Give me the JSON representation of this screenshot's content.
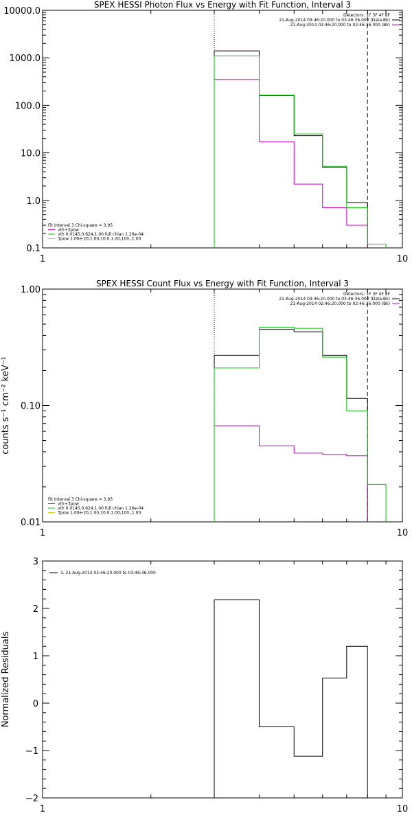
{
  "chart_data": [
    {
      "type": "line",
      "step": true,
      "title": "SPEX HESSI Photon Flux vs Energy with Fit Function, Interval 3",
      "xlabel": "",
      "ylabel": "",
      "xscale": "log",
      "yscale": "log",
      "xlim": [
        1,
        10
      ],
      "ylim": [
        0.1,
        10000
      ],
      "xticks": [
        "1",
        "10"
      ],
      "yticks": [
        "10000.0",
        "1000.0",
        "100.0",
        "10.0",
        "1.0",
        "0.1"
      ],
      "vlines": [
        {
          "x": 3.0,
          "style": "dotted"
        },
        {
          "x": 8.0,
          "style": "dashed"
        }
      ],
      "bin_edges": [
        3,
        4,
        5,
        6,
        7,
        8,
        9
      ],
      "series": [
        {
          "label": "21-Aug-2014 03:46:20.000 to 03:46:36.000 (Data-Bk)",
          "color": "#000000",
          "values": [
            1400,
            160,
            23,
            5.0,
            0.9
          ]
        },
        {
          "label": "21-Aug-2014 02:46:20.000 to 02:46:36.000 (Bk)",
          "color": "#cc00cc",
          "values": [
            350,
            17,
            2.2,
            0.7,
            0.3
          ]
        },
        {
          "label": "",
          "color": "#00cc00",
          "values": [
            1100,
            165,
            25,
            5.2,
            0.7,
            0.12
          ]
        }
      ],
      "annotations": {
        "detectors": "Detectors: 1F 3F 4F 8F",
        "fit_header": "Fit Interval 3   Chi-square = 3.95",
        "fit_lines": [
          {
            "text": "vth+3pow",
            "color": "#cc00cc"
          },
          {
            "text": "vth 0.0145,0.624,1.00   full chian 1.26e-04",
            "color": "#00cc00"
          },
          {
            "text": "3pow 1.00e-20,1.00,10.0,1.00,100.,1.00",
            "color": "#cccc00"
          }
        ]
      }
    },
    {
      "type": "line",
      "step": true,
      "title": "SPEX HESSI Count Flux vs Energy with Fit Function, Interval 3",
      "xlabel": "",
      "ylabel": "counts s⁻¹ cm⁻² keV⁻¹",
      "xscale": "log",
      "yscale": "log",
      "xlim": [
        1,
        10
      ],
      "ylim": [
        0.01,
        1.0
      ],
      "xticks": [
        "1",
        "10"
      ],
      "yticks": [
        "1.00",
        "0.10",
        "0.01"
      ],
      "vlines": [
        {
          "x": 3.0,
          "style": "dotted"
        },
        {
          "x": 8.0,
          "style": "dashed"
        }
      ],
      "bin_edges": [
        3,
        4,
        5,
        6,
        7,
        8,
        9
      ],
      "series": [
        {
          "label": "21-Aug-2014 03:46:20.000 to 03:46:36.000 (Data-Bk)",
          "color": "#000000",
          "values": [
            0.27,
            0.45,
            0.43,
            0.27,
            0.115
          ]
        },
        {
          "label": "21-Aug-2014 02:46:20.000 to 02:46:36.000 (Bk)",
          "color": "#cc00cc",
          "values": [
            0.067,
            0.045,
            0.039,
            0.038,
            0.037
          ]
        },
        {
          "label": "",
          "color": "#00cc00",
          "values": [
            0.21,
            0.47,
            0.46,
            0.26,
            0.09,
            0.021
          ]
        }
      ],
      "annotations": {
        "detectors": "Detectors: 1F 3F 4F 8F",
        "fit_header": "Fit Interval 3   Chi-square = 3.95",
        "fit_lines": [
          {
            "text": "vth+3pow",
            "color": "#cc00cc"
          },
          {
            "text": "vth 0.0145,0.624,1.00   full chian 1.26e-04",
            "color": "#00cc00"
          },
          {
            "text": "3pow 1.00e-20,1.00,10.0,1.00,100.,1.00",
            "color": "#cccc00"
          }
        ]
      }
    },
    {
      "type": "line",
      "step": true,
      "title": "",
      "xlabel": "",
      "ylabel": "Normalized  Residuals",
      "xscale": "log",
      "yscale": "linear",
      "xlim": [
        1,
        10
      ],
      "ylim": [
        -2,
        3
      ],
      "xticks": [
        "1",
        "10"
      ],
      "yticks": [
        "3",
        "2",
        "1",
        "0",
        "−1",
        "−2"
      ],
      "bin_edges": [
        3,
        4,
        5,
        6,
        7,
        8
      ],
      "series": [
        {
          "label": "3, 21-Aug-2014 03:46:20.000 to 03:46:36.000",
          "color": "#000000",
          "values": [
            2.18,
            -0.5,
            -1.12,
            0.53,
            1.2
          ]
        }
      ]
    }
  ]
}
